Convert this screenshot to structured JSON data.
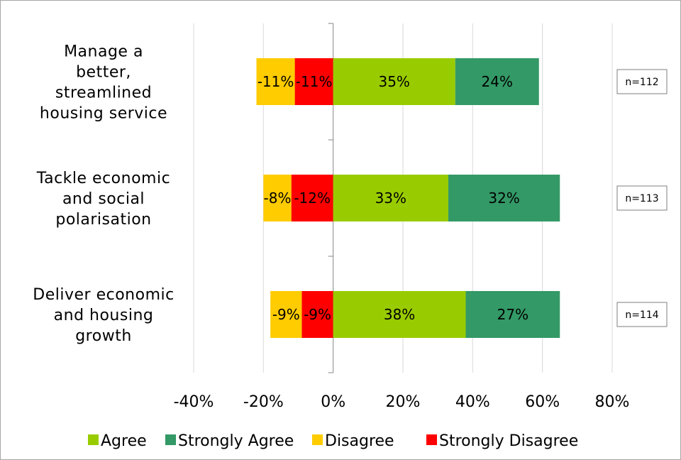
{
  "chart_data": {
    "type": "bar",
    "orientation": "horizontal",
    "stacked": "diverging",
    "categories": [
      "Manage a better, streamlined housing service",
      "Tackle economic and social polarisation",
      "Deliver economic and housing growth"
    ],
    "category_lines": [
      [
        "Manage a",
        "better,",
        "streamlined",
        "housing service"
      ],
      [
        "Tackle economic",
        "and social",
        "polarisation"
      ],
      [
        "Deliver economic",
        "and housing",
        "growth"
      ]
    ],
    "series": [
      {
        "name": "Strongly Disagree",
        "color": "#ff0000",
        "values": [
          -11,
          -12,
          -9
        ],
        "labels": [
          "-11%",
          "-12%",
          "-9%"
        ]
      },
      {
        "name": "Disagree",
        "color": "#ffcc00",
        "values": [
          -11,
          -8,
          -9
        ],
        "labels": [
          "-11%",
          "-8%",
          "-9%"
        ]
      },
      {
        "name": "Agree",
        "color": "#99cc00",
        "values": [
          35,
          33,
          38
        ],
        "labels": [
          "35%",
          "33%",
          "38%"
        ]
      },
      {
        "name": "Strongly Agree",
        "color": "#339966",
        "values": [
          24,
          32,
          27
        ],
        "labels": [
          "24%",
          "32%",
          "27%"
        ]
      }
    ],
    "n_labels": [
      "n=112",
      "n=113",
      "n=114"
    ],
    "legend_order": [
      "Agree",
      "Strongly Agree",
      "Disagree",
      "Strongly Disagree"
    ],
    "x_ticks": [
      -40,
      -20,
      0,
      20,
      40,
      60,
      80
    ],
    "x_tick_labels": [
      "-40%",
      "-20%",
      "0%",
      "20%",
      "40%",
      "60%",
      "80%"
    ],
    "xlim": [
      -40,
      80
    ],
    "xlabel": "",
    "ylabel": "",
    "grid": "vertical",
    "legend_position": "bottom"
  }
}
